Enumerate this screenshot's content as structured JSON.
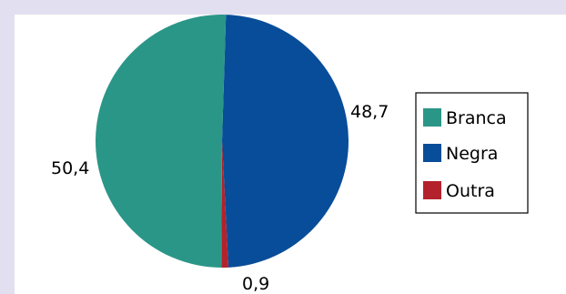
{
  "chart_data": {
    "type": "pie",
    "title": "",
    "slices": [
      {
        "label": "Branca",
        "value": 50.4,
        "display": "50,4",
        "color": "#2a9688"
      },
      {
        "label": "Negra",
        "value": 48.7,
        "display": "48,7",
        "color": "#084d99"
      },
      {
        "label": "Outra",
        "value": 0.9,
        "display": "0,9",
        "color": "#b3222c"
      }
    ],
    "legend": {
      "position": "right",
      "entries": [
        "Branca",
        "Negra",
        "Outra"
      ]
    }
  },
  "colors": {
    "background": "#e2e0f0",
    "plot_area": "#ffffff"
  }
}
